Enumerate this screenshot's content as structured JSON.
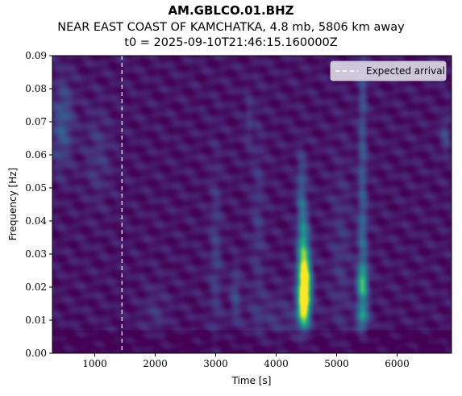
{
  "header": {
    "station": "AM.GBLCO.01.BHZ",
    "event_line": "NEAR EAST COAST OF KAMCHATKA, 4.8 mb, 5806 km away",
    "t0_line": "t0 = 2025-09-10T21:46:15.160000Z"
  },
  "chart_data": {
    "type": "heatmap",
    "xlabel": "Time [s]",
    "ylabel": "Frequency [Hz]",
    "xlim": [
      300,
      6900
    ],
    "ylim": [
      0.0,
      0.09
    ],
    "x_ticks": [
      1000,
      2000,
      3000,
      4000,
      5000,
      6000
    ],
    "y_ticks": [
      0.0,
      0.01,
      0.02,
      0.03,
      0.04,
      0.05,
      0.06,
      0.07,
      0.08,
      0.09
    ],
    "x_tick_labels": [
      "1000",
      "2000",
      "3000",
      "4000",
      "5000",
      "6000"
    ],
    "y_tick_labels": [
      "0.00",
      "0.01",
      "0.02",
      "0.03",
      "0.04",
      "0.05",
      "0.06",
      "0.07",
      "0.08",
      "0.09"
    ],
    "colormap": "viridis",
    "background_color": "#46085a",
    "expected_arrival": {
      "time": 1450,
      "label": "Expected arrival",
      "color": "#ffffff",
      "style": "dashed"
    },
    "legend": {
      "position": "top-right",
      "entries": [
        "Expected arrival"
      ]
    },
    "energy_blobs": [
      {
        "t": 4470,
        "f": 0.021,
        "st": 75,
        "sf": 0.0065,
        "a": 1.0
      },
      {
        "t": 4450,
        "f": 0.013,
        "st": 70,
        "sf": 0.004,
        "a": 0.55
      },
      {
        "t": 4450,
        "f": 0.033,
        "st": 65,
        "sf": 0.008,
        "a": 0.4
      },
      {
        "t": 4420,
        "f": 0.05,
        "st": 60,
        "sf": 0.008,
        "a": 0.2
      },
      {
        "t": 5430,
        "f": 0.021,
        "st": 65,
        "sf": 0.004,
        "a": 0.6
      },
      {
        "t": 5430,
        "f": 0.011,
        "st": 70,
        "sf": 0.003,
        "a": 0.45
      },
      {
        "t": 5430,
        "f": 0.035,
        "st": 60,
        "sf": 0.008,
        "a": 0.25
      },
      {
        "t": 5430,
        "f": 0.057,
        "st": 55,
        "sf": 0.01,
        "a": 0.2
      },
      {
        "t": 5430,
        "f": 0.078,
        "st": 50,
        "sf": 0.008,
        "a": 0.15
      },
      {
        "t": 3000,
        "f": 0.03,
        "st": 70,
        "sf": 0.02,
        "a": 0.12
      },
      {
        "t": 3330,
        "f": 0.018,
        "st": 60,
        "sf": 0.006,
        "a": 0.15
      },
      {
        "t": 3700,
        "f": 0.04,
        "st": 80,
        "sf": 0.02,
        "a": 0.1
      },
      {
        "t": 3550,
        "f": 0.07,
        "st": 50,
        "sf": 0.006,
        "a": 0.1
      },
      {
        "t": 5070,
        "f": 0.03,
        "st": 120,
        "sf": 0.02,
        "a": 0.09
      },
      {
        "t": 6800,
        "f": 0.066,
        "st": 60,
        "sf": 0.004,
        "a": 0.15
      },
      {
        "t": 2000,
        "f": 0.012,
        "st": 150,
        "sf": 0.006,
        "a": 0.08
      },
      {
        "t": 450,
        "f": 0.066,
        "st": 120,
        "sf": 0.008,
        "a": 0.15
      },
      {
        "t": 500,
        "f": 0.075,
        "st": 120,
        "sf": 0.008,
        "a": 0.1
      },
      {
        "t": 1050,
        "f": 0.06,
        "st": 150,
        "sf": 0.01,
        "a": 0.1
      },
      {
        "t": 4000,
        "f": 0.01,
        "st": 400,
        "sf": 0.006,
        "a": 0.08
      }
    ]
  }
}
